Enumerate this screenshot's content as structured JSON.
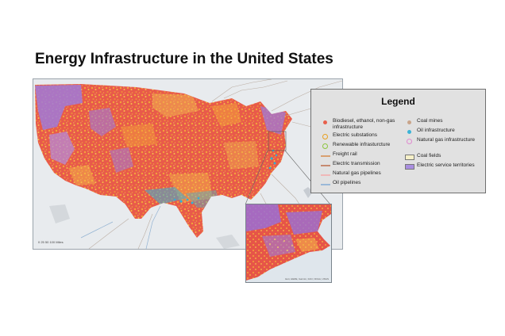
{
  "title": "Energy Infrastructure in the United States",
  "legend": {
    "title": "Legend",
    "items": [
      {
        "label": "Biodiesel, ethanol, non-gas infrastructure",
        "symbol": "dot",
        "color": "#e8604c",
        "icon": "red-dot-icon"
      },
      {
        "label": "Electric substations",
        "symbol": "ring",
        "color": "#e8a020",
        "icon": "orange-ring-icon"
      },
      {
        "label": "Renewable infrasturcture",
        "symbol": "ring",
        "color": "#8cc63f",
        "icon": "green-ring-icon"
      },
      {
        "label": "Freight rail",
        "symbol": "line",
        "color": "#d9a070",
        "icon": "freight-rail-line-icon"
      },
      {
        "label": "Electric transmission",
        "symbol": "line",
        "color": "#c58a70",
        "icon": "transmission-line-icon"
      },
      {
        "label": "Natural gas pipelines",
        "symbol": "line",
        "color": "#f0b8b8",
        "icon": "gas-pipeline-line-icon"
      },
      {
        "label": "Oil pipelines",
        "symbol": "line",
        "color": "#9ab8d8",
        "icon": "oil-pipeline-line-icon"
      },
      {
        "label": "Coal mines",
        "symbol": "dot",
        "color": "#c9a48a",
        "icon": "coal-mine-dot-icon"
      },
      {
        "label": "Oil infrastructure",
        "symbol": "dot",
        "color": "#3bb3d6",
        "icon": "oil-infrastructure-dot-icon"
      },
      {
        "label": "Natural gas infrastructure",
        "symbol": "ring",
        "color": "#e08ad0",
        "icon": "gas-infrastructure-ring-icon"
      },
      {
        "label": "Coal fields",
        "symbol": "box",
        "color": "#f6f0c8",
        "icon": "coal-field-swatch-icon"
      },
      {
        "label": "Electric service territories",
        "symbol": "box",
        "color": "#a98ee0",
        "icon": "service-territory-swatch-icon"
      }
    ]
  },
  "map": {
    "scale_text": "0   25   50        100 Miles",
    "inset_credit": "Esri, HERE, Garmin, FAO, NOAA, USGS",
    "colors": {
      "ocean": "#e8ebee",
      "land": "#e85a4a",
      "substation": "#eea23a",
      "territory": "#a07ad8",
      "oil": "#3bb3d6",
      "rail": "#c9b0a0"
    }
  }
}
